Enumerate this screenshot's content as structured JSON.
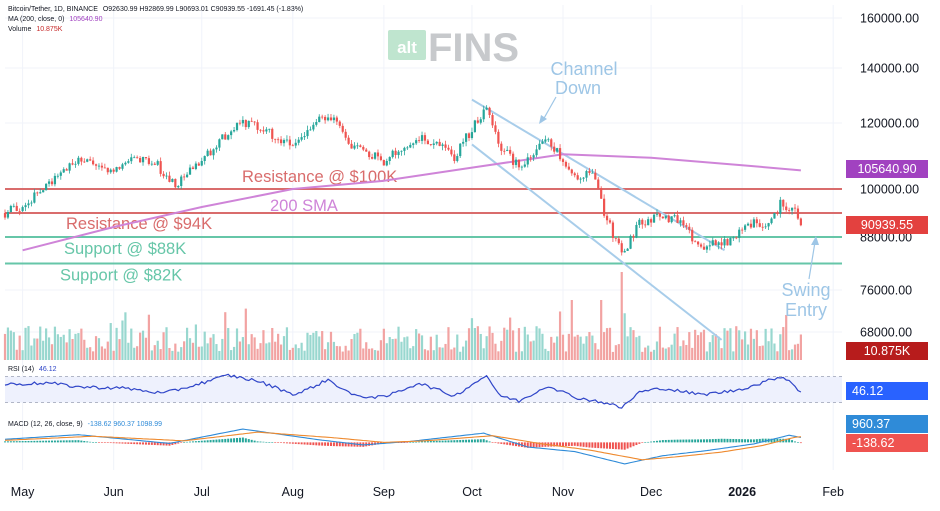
{
  "header": {
    "symbol": "Bitcoin/Tether, 1D, BINANCE",
    "ohlc": "O92630.99 H92869.99 L90693.01 C90939.55 -1691.45 (-1.83%)",
    "ma_label": "MA (200, close, 0)",
    "ma_value": "105640.90",
    "volume_label": "Volume",
    "volume_value": "10.875K",
    "rsi_label": "RSI (14)",
    "rsi_value": "46.12",
    "macd_label": "MACD (12, 26, close, 9)",
    "macd_values": "-138.62  960.37  1098.99"
  },
  "watermark": {
    "small": "alt",
    "big": "FINS"
  },
  "colors": {
    "up": "#26a69a",
    "down": "#ef5350",
    "ma": "#cf84d8",
    "resistance": "#d96c6c",
    "support": "#66c6a8",
    "channel": "#a8cdea",
    "rsi": "#2f45c8",
    "macd": "#2f8bd8",
    "signal": "#ee8a2f",
    "price_badge": "#e3413f",
    "ma_badge": "#a142c0",
    "vol_badge": "#b71c1c",
    "rsi_badge": "#2962ff"
  },
  "chart_data": {
    "type": "candlestick",
    "x_range": [
      "2025-04-25",
      "2026-02-04"
    ],
    "price_axis": {
      "range": [
        64000,
        163000
      ],
      "ticks": [
        160000,
        140000,
        120000,
        100000,
        88000,
        76000,
        68000
      ],
      "tick_labels": [
        "160000.00",
        "140000.00",
        "120000.00",
        "100000.00",
        "88000.00",
        "76000.00",
        "68000.00"
      ]
    },
    "month_ticks": [
      {
        "date": "2025-05-01",
        "label": "May"
      },
      {
        "date": "2025-06-01",
        "label": "Jun"
      },
      {
        "date": "2025-07-01",
        "label": "Jul"
      },
      {
        "date": "2025-08-01",
        "label": "Aug"
      },
      {
        "date": "2025-09-01",
        "label": "Sep"
      },
      {
        "date": "2025-10-01",
        "label": "Oct"
      },
      {
        "date": "2025-11-01",
        "label": "Nov"
      },
      {
        "date": "2025-12-01",
        "label": "Dec"
      },
      {
        "date": "2026-01-01",
        "label": "2026"
      },
      {
        "date": "2026-02-01",
        "label": "Feb"
      }
    ],
    "price_path": [
      [
        "2025-04-25",
        94000
      ],
      [
        "2025-05-01",
        96000
      ],
      [
        "2025-05-08",
        99500
      ],
      [
        "2025-05-12",
        104000
      ],
      [
        "2025-05-22",
        109000
      ],
      [
        "2025-05-31",
        104500
      ],
      [
        "2025-06-09",
        109500
      ],
      [
        "2025-06-16",
        107000
      ],
      [
        "2025-06-22",
        101000
      ],
      [
        "2025-06-30",
        108000
      ],
      [
        "2025-07-10",
        117000
      ],
      [
        "2025-07-14",
        121000
      ],
      [
        "2025-07-20",
        118500
      ],
      [
        "2025-08-02",
        113000
      ],
      [
        "2025-08-13",
        123500
      ],
      [
        "2025-08-20",
        113500
      ],
      [
        "2025-09-01",
        108500
      ],
      [
        "2025-09-13",
        116000
      ],
      [
        "2025-09-25",
        110000
      ],
      [
        "2025-10-06",
        125500
      ],
      [
        "2025-10-10",
        113000
      ],
      [
        "2025-10-17",
        107000
      ],
      [
        "2025-10-27",
        115000
      ],
      [
        "2025-11-04",
        104000
      ],
      [
        "2025-11-12",
        104000
      ],
      [
        "2025-11-15",
        94000
      ],
      [
        "2025-11-21",
        84000
      ],
      [
        "2025-11-27",
        91500
      ],
      [
        "2025-12-03",
        93000
      ],
      [
        "2025-12-09",
        92500
      ],
      [
        "2025-12-18",
        85500
      ],
      [
        "2025-12-29",
        87500
      ],
      [
        "2026-01-05",
        92000
      ],
      [
        "2026-01-10",
        90500
      ],
      [
        "2026-01-14",
        96500
      ],
      [
        "2026-01-18",
        95000
      ],
      [
        "2026-01-20",
        92630.99
      ],
      [
        "2026-01-21",
        90939.55
      ]
    ],
    "last": {
      "open": 92630.99,
      "high": 92869.99,
      "low": 90693.01,
      "close": 90939.55,
      "change": -1691.45,
      "change_pct": -1.83
    },
    "ma200": {
      "name": "200 SMA",
      "points": [
        [
          "2025-05-01",
          85000
        ],
        [
          "2025-06-01",
          90500
        ],
        [
          "2025-07-01",
          95500
        ],
        [
          "2025-08-01",
          100000
        ],
        [
          "2025-09-01",
          102500
        ],
        [
          "2025-10-01",
          106500
        ],
        [
          "2025-11-01",
          110500
        ],
        [
          "2025-12-01",
          109500
        ],
        [
          "2026-01-01",
          107200
        ],
        [
          "2026-01-21",
          105640.9
        ]
      ],
      "last": 105640.9
    },
    "levels": [
      {
        "name": "Resistance @ $100K",
        "value": 100000,
        "kind": "resistance"
      },
      {
        "name": "Resistance @ $94K",
        "value": 94000,
        "kind": "resistance"
      },
      {
        "name": "Support @ $88K",
        "value": 88000,
        "kind": "support"
      },
      {
        "name": "Support @ $82K",
        "value": 82000,
        "kind": "support"
      }
    ],
    "channel": {
      "label_line1": "Channel",
      "label_line2": "Down",
      "upper": [
        [
          "2025-10-01",
          128500
        ],
        [
          "2025-12-26",
          85000
        ]
      ],
      "lower": [
        [
          "2025-10-01",
          113500
        ],
        [
          "2025-12-25",
          66500
        ]
      ]
    },
    "swing_entry": {
      "line1": "Swing",
      "line2": "Entry"
    },
    "volume": {
      "last": "10.875K"
    },
    "rsi": {
      "range": [
        20,
        80
      ],
      "bands": [
        70,
        30
      ],
      "points": [
        [
          "2025-04-25",
          58
        ],
        [
          "2025-05-10",
          60
        ],
        [
          "2025-05-20",
          54
        ],
        [
          "2025-06-05",
          52
        ],
        [
          "2025-06-18",
          44
        ],
        [
          "2025-06-28",
          56
        ],
        [
          "2025-07-10",
          72
        ],
        [
          "2025-07-20",
          63
        ],
        [
          "2025-08-02",
          42
        ],
        [
          "2025-08-13",
          65
        ],
        [
          "2025-08-22",
          40
        ],
        [
          "2025-09-01",
          38
        ],
        [
          "2025-09-13",
          60
        ],
        [
          "2025-09-25",
          40
        ],
        [
          "2025-10-06",
          72
        ],
        [
          "2025-10-10",
          42
        ],
        [
          "2025-10-17",
          32
        ],
        [
          "2025-10-27",
          56
        ],
        [
          "2025-11-05",
          38
        ],
        [
          "2025-11-15",
          30
        ],
        [
          "2025-11-21",
          22
        ],
        [
          "2025-11-27",
          46
        ],
        [
          "2025-12-05",
          52
        ],
        [
          "2025-12-18",
          42
        ],
        [
          "2025-12-29",
          48
        ],
        [
          "2026-01-05",
          56
        ],
        [
          "2026-01-14",
          70
        ],
        [
          "2026-01-17",
          64
        ],
        [
          "2026-01-21",
          46.12
        ]
      ],
      "last": 46.12
    },
    "macd": {
      "range": [
        -5000,
        3000
      ],
      "macd_points": [
        [
          "2025-04-25",
          600
        ],
        [
          "2025-05-20",
          1500
        ],
        [
          "2025-06-20",
          -200
        ],
        [
          "2025-07-15",
          2600
        ],
        [
          "2025-08-10",
          500
        ],
        [
          "2025-08-25",
          -500
        ],
        [
          "2025-09-10",
          200
        ],
        [
          "2025-10-05",
          1800
        ],
        [
          "2025-10-20",
          -900
        ],
        [
          "2025-11-05",
          -1800
        ],
        [
          "2025-11-22",
          -4200
        ],
        [
          "2025-12-05",
          -2600
        ],
        [
          "2025-12-20",
          -1600
        ],
        [
          "2026-01-05",
          -300
        ],
        [
          "2026-01-17",
          1400
        ],
        [
          "2026-01-21",
          960.37
        ]
      ],
      "signal_points": [
        [
          "2025-04-25",
          400
        ],
        [
          "2025-05-25",
          1200
        ],
        [
          "2025-06-25",
          300
        ],
        [
          "2025-07-20",
          2000
        ],
        [
          "2025-08-15",
          900
        ],
        [
          "2025-09-01",
          0
        ],
        [
          "2025-09-15",
          300
        ],
        [
          "2025-10-08",
          1300
        ],
        [
          "2025-10-25",
          -300
        ],
        [
          "2025-11-10",
          -1500
        ],
        [
          "2025-11-28",
          -3400
        ],
        [
          "2025-12-10",
          -2800
        ],
        [
          "2025-12-25",
          -1900
        ],
        [
          "2026-01-08",
          -600
        ],
        [
          "2026-01-19",
          1000
        ],
        [
          "2026-01-21",
          1098.99
        ]
      ],
      "histogram_last": -138.62,
      "macd_last": 960.37,
      "signal_last": 1098.99
    },
    "badges": {
      "ma": "105640.90",
      "price": "90939.55",
      "volume": "10.875K",
      "rsi": "46.12",
      "macd": "960.37",
      "histogram": "-138.62"
    }
  }
}
